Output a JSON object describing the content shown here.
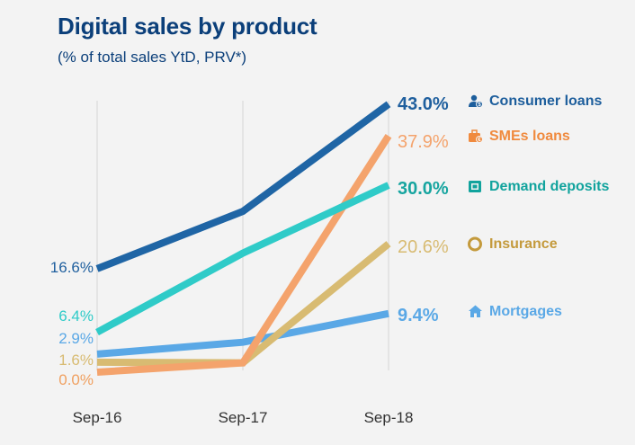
{
  "header": {
    "title": "Digital sales by product",
    "subtitle": "(% of total sales YtD, PRV*)"
  },
  "chart_data": {
    "type": "line",
    "title": "Digital sales by product",
    "subtitle": "(% of total sales YtD, PRV*)",
    "categories": [
      "Sep-16",
      "Sep-17",
      "Sep-18"
    ],
    "xlabel": "",
    "ylabel": "",
    "ylim": [
      0,
      45
    ],
    "grid": "vertical",
    "series": [
      {
        "name": "Consumer loans",
        "color": "#1f65a5",
        "icon": "person-coin-icon",
        "values": [
          16.6,
          25.8,
          43.0
        ],
        "start_label": "16.6%",
        "end_label": "43.0%"
      },
      {
        "name": "SMEs loans",
        "color": "#f4a36c",
        "icon": "briefcase-coin-icon",
        "values": [
          0.0,
          1.5,
          37.9
        ],
        "start_label": "0.0%",
        "end_label": "37.9%"
      },
      {
        "name": "Demand deposits",
        "color": "#2fcbc8",
        "icon": "safe-icon",
        "values": [
          6.4,
          19.1,
          30.0
        ],
        "start_label": "6.4%",
        "end_label": "30.0%"
      },
      {
        "name": "Insurance",
        "color": "#d8bb72",
        "icon": "lifebuoy-icon",
        "values": [
          1.6,
          1.5,
          20.6
        ],
        "start_label": "1.6%",
        "end_label": "20.6%"
      },
      {
        "name": "Mortgages",
        "color": "#5aa8e6",
        "icon": "house-icon",
        "values": [
          2.9,
          4.8,
          9.4
        ],
        "start_label": "2.9%",
        "end_label": "9.4%"
      }
    ]
  }
}
